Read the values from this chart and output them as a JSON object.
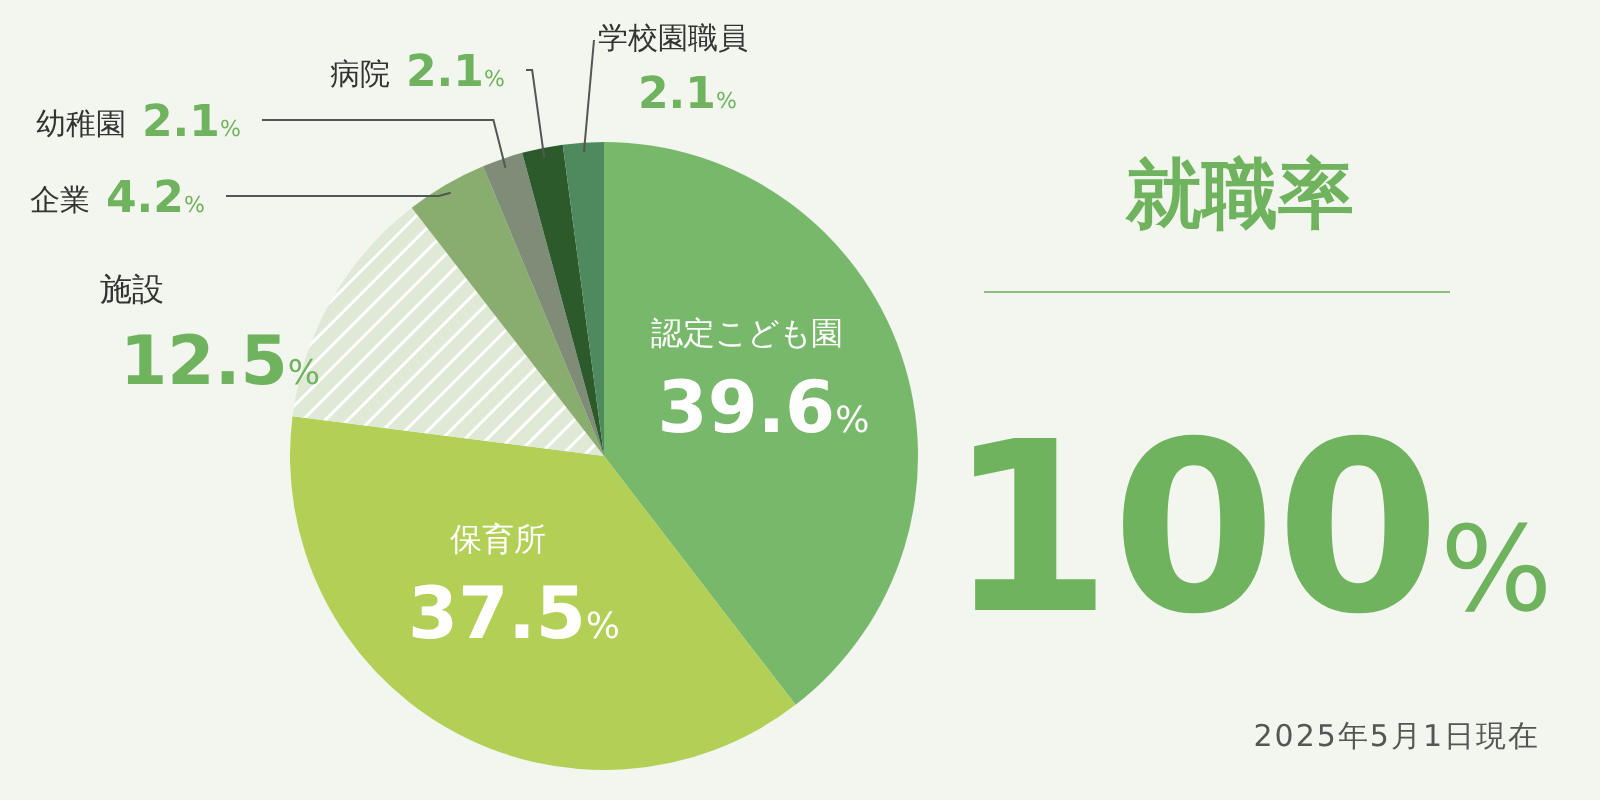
{
  "chart_data": {
    "type": "pie",
    "title": "就職率",
    "categories": [
      "認定こども園",
      "保育所",
      "施設",
      "企業",
      "幼稚園",
      "病院",
      "学校園職員"
    ],
    "values": [
      39.6,
      37.5,
      12.5,
      4.2,
      2.1,
      2.1,
      2.1
    ],
    "value_labels": [
      "39.6%",
      "37.5%",
      "12.5%",
      "4.2%",
      "2.1%",
      "2.1%",
      "2.1%"
    ],
    "colors": [
      "#78b86a",
      "#b2cf56",
      "#dfe9d6",
      "#88ad6f",
      "#7e8c78",
      "#2d5a2a",
      "#4f8a5e"
    ],
    "annotations": [
      "100%",
      "2025年5月1日現在"
    ]
  }
}
